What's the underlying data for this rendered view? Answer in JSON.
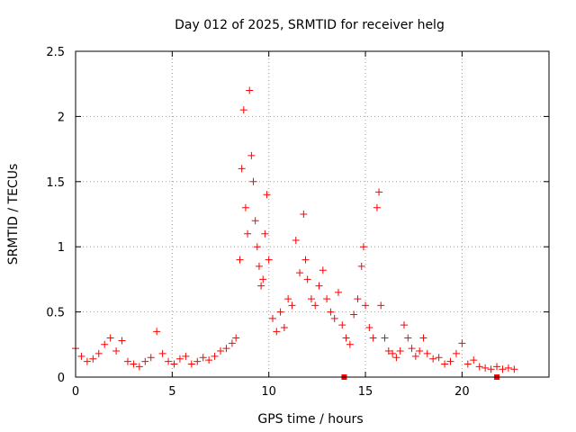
{
  "chart_data": {
    "type": "scatter",
    "title": "Day 012 of 2025, SRMTID for receiver helg",
    "xlabel": "GPS time / hours",
    "ylabel": "SRMTID / TECUs",
    "xlim": [
      0,
      24.5
    ],
    "ylim": [
      0,
      2.5
    ],
    "xticks": [
      0,
      5,
      10,
      15,
      20
    ],
    "xtick_labels": [
      "0",
      "5",
      "10",
      "15",
      "20"
    ],
    "yticks": [
      0,
      0.5,
      1,
      1.5,
      2,
      2.5
    ],
    "ytick_labels": [
      "0",
      "0.5",
      "1",
      "1.5",
      "2",
      "2.5"
    ],
    "grid": true,
    "marker": "plus",
    "color": "#ff0000",
    "series": [
      {
        "name": "SRMTID",
        "x": [
          0.0,
          0.3,
          0.6,
          0.9,
          1.2,
          1.5,
          1.8,
          2.1,
          2.4,
          2.7,
          3.0,
          3.3,
          3.6,
          3.9,
          4.2,
          4.5,
          4.8,
          5.1,
          5.4,
          5.7,
          6.0,
          6.3,
          6.6,
          6.9,
          7.2,
          7.5,
          7.8,
          8.1,
          8.3,
          8.5,
          8.6,
          8.7,
          8.8,
          8.9,
          9.0,
          9.1,
          9.2,
          9.3,
          9.4,
          9.5,
          9.6,
          9.7,
          9.8,
          9.9,
          10.0,
          10.2,
          10.4,
          10.6,
          10.8,
          11.0,
          11.2,
          11.4,
          11.6,
          11.8,
          11.9,
          12.0,
          12.2,
          12.4,
          12.6,
          12.8,
          13.0,
          13.2,
          13.4,
          13.6,
          13.8,
          14.0,
          14.2,
          14.4,
          14.6,
          14.8,
          14.9,
          15.0,
          15.2,
          15.4,
          15.6,
          15.7,
          15.8,
          16.0,
          16.2,
          16.4,
          16.6,
          16.8,
          17.0,
          17.2,
          17.4,
          17.6,
          17.8,
          18.0,
          18.2,
          18.5,
          18.8,
          19.1,
          19.4,
          19.7,
          20.0,
          20.3,
          20.6,
          20.9,
          21.2,
          21.5,
          21.8,
          22.1,
          22.4,
          22.7
        ],
        "values": [
          0.22,
          0.16,
          0.12,
          0.14,
          0.18,
          0.25,
          0.3,
          0.2,
          0.28,
          0.12,
          0.1,
          0.08,
          0.12,
          0.15,
          0.35,
          0.18,
          0.12,
          0.1,
          0.14,
          0.16,
          0.1,
          0.12,
          0.15,
          0.13,
          0.16,
          0.2,
          0.22,
          0.26,
          0.3,
          0.9,
          1.6,
          2.05,
          1.3,
          1.1,
          2.2,
          1.7,
          1.5,
          1.2,
          1.0,
          0.85,
          0.7,
          0.75,
          1.1,
          1.4,
          0.9,
          0.45,
          0.35,
          0.5,
          0.38,
          0.6,
          0.55,
          1.05,
          0.8,
          1.25,
          0.9,
          0.75,
          0.6,
          0.55,
          0.7,
          0.82,
          0.6,
          0.5,
          0.45,
          0.65,
          0.4,
          0.3,
          0.25,
          0.48,
          0.6,
          0.85,
          1.0,
          0.55,
          0.38,
          0.3,
          1.3,
          1.42,
          0.55,
          0.3,
          0.2,
          0.18,
          0.15,
          0.2,
          0.4,
          0.3,
          0.22,
          0.16,
          0.2,
          0.3,
          0.18,
          0.14,
          0.15,
          0.1,
          0.12,
          0.18,
          0.26,
          0.1,
          0.13,
          0.08,
          0.07,
          0.06,
          0.08,
          0.06,
          0.07,
          0.06
        ]
      }
    ],
    "outliers": {
      "x": [
        13.9,
        21.8
      ],
      "values": [
        0.0,
        0.0
      ]
    }
  }
}
